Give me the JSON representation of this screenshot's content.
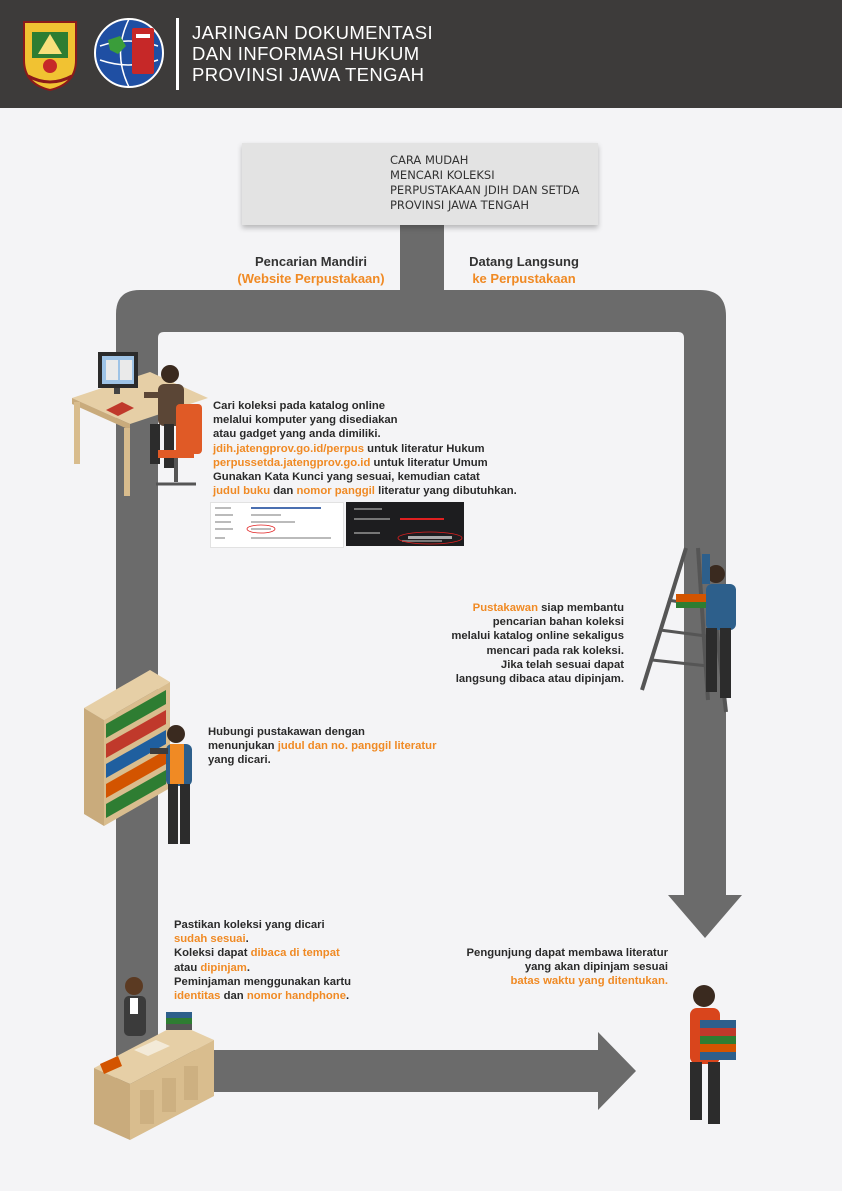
{
  "header": {
    "title_lines": [
      "JARINGAN DOKUMENTASI",
      "DAN INFORMASI HUKUM",
      "PROVINSI JAWA TENGAH"
    ]
  },
  "intro": {
    "lines": [
      "CARA MUDAH",
      "MENCARI KOLEKSI",
      "PERPUSTAKAAN JDIH DAN SETDA",
      "PROVINSI JAWA TENGAH"
    ]
  },
  "paths": {
    "left_title": "Pencarian Mandiri",
    "left_subtitle": "(Website Perpustakaan)",
    "right_title": "Datang Langsung",
    "right_subtitle": "ke Perpustakaan"
  },
  "step1": {
    "l1": "Cari koleksi pada katalog online",
    "l2": "melalui komputer yang disediakan",
    "l3": "atau gadget yang anda dimiliki.",
    "url1": "jdih.jatengprov.go.id/perpus",
    "url1_suffix": " untuk literatur Hukum",
    "url2": "perpussetda.jatengprov.go.id",
    "url2_suffix": " untuk literatur Umum",
    "l6": "Gunakan Kata Kunci yang sesuai, kemudian catat",
    "k1": "judul buku",
    "mid": " dan ",
    "k2": "nomor panggil",
    "tail": " literatur yang dibutuhkan."
  },
  "step2": {
    "l1": "Hubungi pustakawan dengan",
    "l2_prefix": "menunjukan ",
    "l2_highlight": "judul dan no. panggil literatur",
    "l3": "yang dicari."
  },
  "step3": {
    "l1": "Pastikan koleksi yang dicari",
    "l2": "sudah sesuai",
    "l2_end": ".",
    "l3_prefix": "Koleksi dapat ",
    "l3_highlight": "dibaca di tempat",
    "l4_prefix": "atau ",
    "l4_highlight": "dipinjam",
    "l4_end": ".",
    "l5": "Peminjaman menggunakan kartu",
    "l6_a": "identitas",
    "l6_mid": " dan ",
    "l6_b": "nomor handphone",
    "l6_end": "."
  },
  "step4": {
    "l1_highlight": "Pustakawan",
    "l1_rest": " siap membantu",
    "l2": "pencarian bahan koleksi",
    "l3": "melalui katalog online sekaligus",
    "l4": "mencari pada rak koleksi.",
    "l5": "Jika telah sesuai dapat",
    "l6": "langsung dibaca atau dipinjam."
  },
  "step5": {
    "l1": "Pengunjung dapat membawa literatur",
    "l2": "yang akan dipinjam sesuai",
    "l3": "batas waktu yang ditentukan."
  },
  "colors": {
    "header_bg": "#3d3b3a",
    "accent": "#f08a24",
    "path": "#6b6b6b",
    "background": "#f4f4f6"
  }
}
